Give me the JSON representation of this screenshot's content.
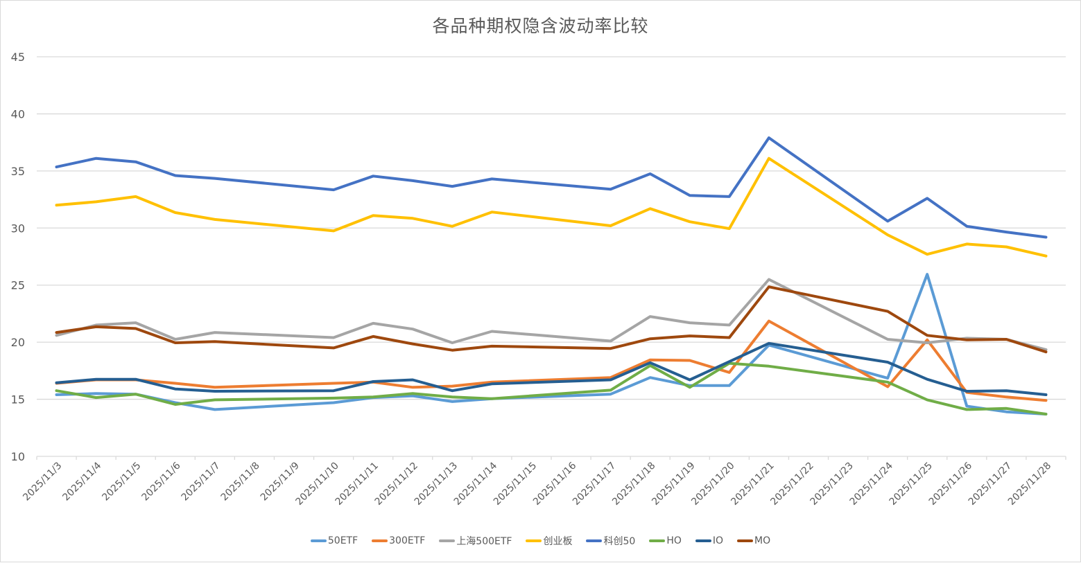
{
  "chart_data": {
    "type": "line",
    "title": "各品种期权隐含波动率比较",
    "xlabel": "",
    "ylabel": "",
    "ylim": [
      10,
      45
    ],
    "yticks": [
      10,
      15,
      20,
      25,
      30,
      35,
      40,
      45
    ],
    "grid": true,
    "legend_position": "bottom",
    "categories": [
      "2025/11/3",
      "2025/11/4",
      "2025/11/5",
      "2025/11/6",
      "2025/11/7",
      "2025/11/8",
      "2025/11/9",
      "2025/11/10",
      "2025/11/11",
      "2025/11/12",
      "2025/11/13",
      "2025/11/14",
      "2025/11/15",
      "2025/11/16",
      "2025/11/17",
      "2025/11/18",
      "2025/11/19",
      "2025/11/20",
      "2025/11/21",
      "2025/11/22",
      "2025/11/23",
      "2025/11/24",
      "2025/11/25",
      "2025/11/26",
      "2025/11/27",
      "2025/11/28"
    ],
    "series": [
      {
        "name": "50ETF",
        "color": "#5B9BD5",
        "values": [
          15.4,
          15.5,
          15.45,
          14.7,
          14.1,
          null,
          null,
          14.7,
          15.15,
          15.3,
          14.8,
          15.05,
          null,
          null,
          15.45,
          16.9,
          16.2,
          16.2,
          19.75,
          null,
          null,
          16.85,
          25.95,
          14.4,
          13.9,
          13.7
        ]
      },
      {
        "name": "300ETF",
        "color": "#ED7D31",
        "values": [
          16.4,
          16.7,
          16.7,
          16.4,
          16.05,
          null,
          null,
          16.4,
          16.5,
          16.05,
          16.15,
          16.5,
          null,
          null,
          16.9,
          18.45,
          18.4,
          17.35,
          21.85,
          null,
          null,
          16.1,
          20.2,
          15.6,
          15.2,
          14.9
        ]
      },
      {
        "name": "上海500ETF",
        "color": "#A5A5A5",
        "values": [
          20.6,
          21.5,
          21.7,
          20.25,
          20.85,
          null,
          null,
          20.4,
          21.65,
          21.15,
          19.95,
          20.95,
          null,
          null,
          20.1,
          22.25,
          21.7,
          21.5,
          25.5,
          null,
          null,
          20.25,
          19.95,
          20.35,
          20.25,
          19.35
        ]
      },
      {
        "name": "创业板",
        "color": "#FFC000",
        "values": [
          32.0,
          32.3,
          32.75,
          31.35,
          30.75,
          null,
          null,
          29.75,
          31.1,
          30.85,
          30.15,
          31.4,
          null,
          null,
          30.2,
          31.7,
          30.55,
          29.95,
          36.1,
          null,
          null,
          29.4,
          27.7,
          28.6,
          28.35,
          27.55
        ]
      },
      {
        "name": "科创50",
        "color": "#4472C4",
        "values": [
          35.35,
          36.1,
          35.8,
          34.6,
          34.35,
          null,
          null,
          33.35,
          34.55,
          34.15,
          33.65,
          34.3,
          null,
          null,
          33.4,
          34.75,
          32.85,
          32.75,
          37.9,
          null,
          null,
          30.6,
          32.6,
          30.15,
          29.65,
          29.2
        ]
      },
      {
        "name": "HO",
        "color": "#70AD47",
        "values": [
          15.75,
          15.15,
          15.45,
          14.55,
          14.95,
          null,
          null,
          15.1,
          15.2,
          15.5,
          15.2,
          15.05,
          null,
          null,
          15.8,
          17.95,
          16.05,
          18.15,
          17.9,
          null,
          null,
          16.5,
          14.95,
          14.1,
          14.2,
          13.7
        ]
      },
      {
        "name": "IO",
        "color": "#255E91",
        "values": [
          16.45,
          16.75,
          16.75,
          15.9,
          15.7,
          null,
          null,
          15.75,
          16.55,
          16.7,
          15.75,
          16.35,
          null,
          null,
          16.7,
          18.2,
          16.7,
          18.3,
          19.9,
          null,
          null,
          18.25,
          16.75,
          15.7,
          15.75,
          15.4
        ]
      },
      {
        "name": "MO",
        "color": "#9E480E",
        "values": [
          20.85,
          21.35,
          21.2,
          19.95,
          20.05,
          null,
          null,
          19.5,
          20.5,
          19.85,
          19.3,
          19.65,
          null,
          null,
          19.45,
          20.3,
          20.55,
          20.4,
          24.85,
          null,
          null,
          22.7,
          20.6,
          20.2,
          20.25,
          19.15
        ]
      }
    ]
  }
}
